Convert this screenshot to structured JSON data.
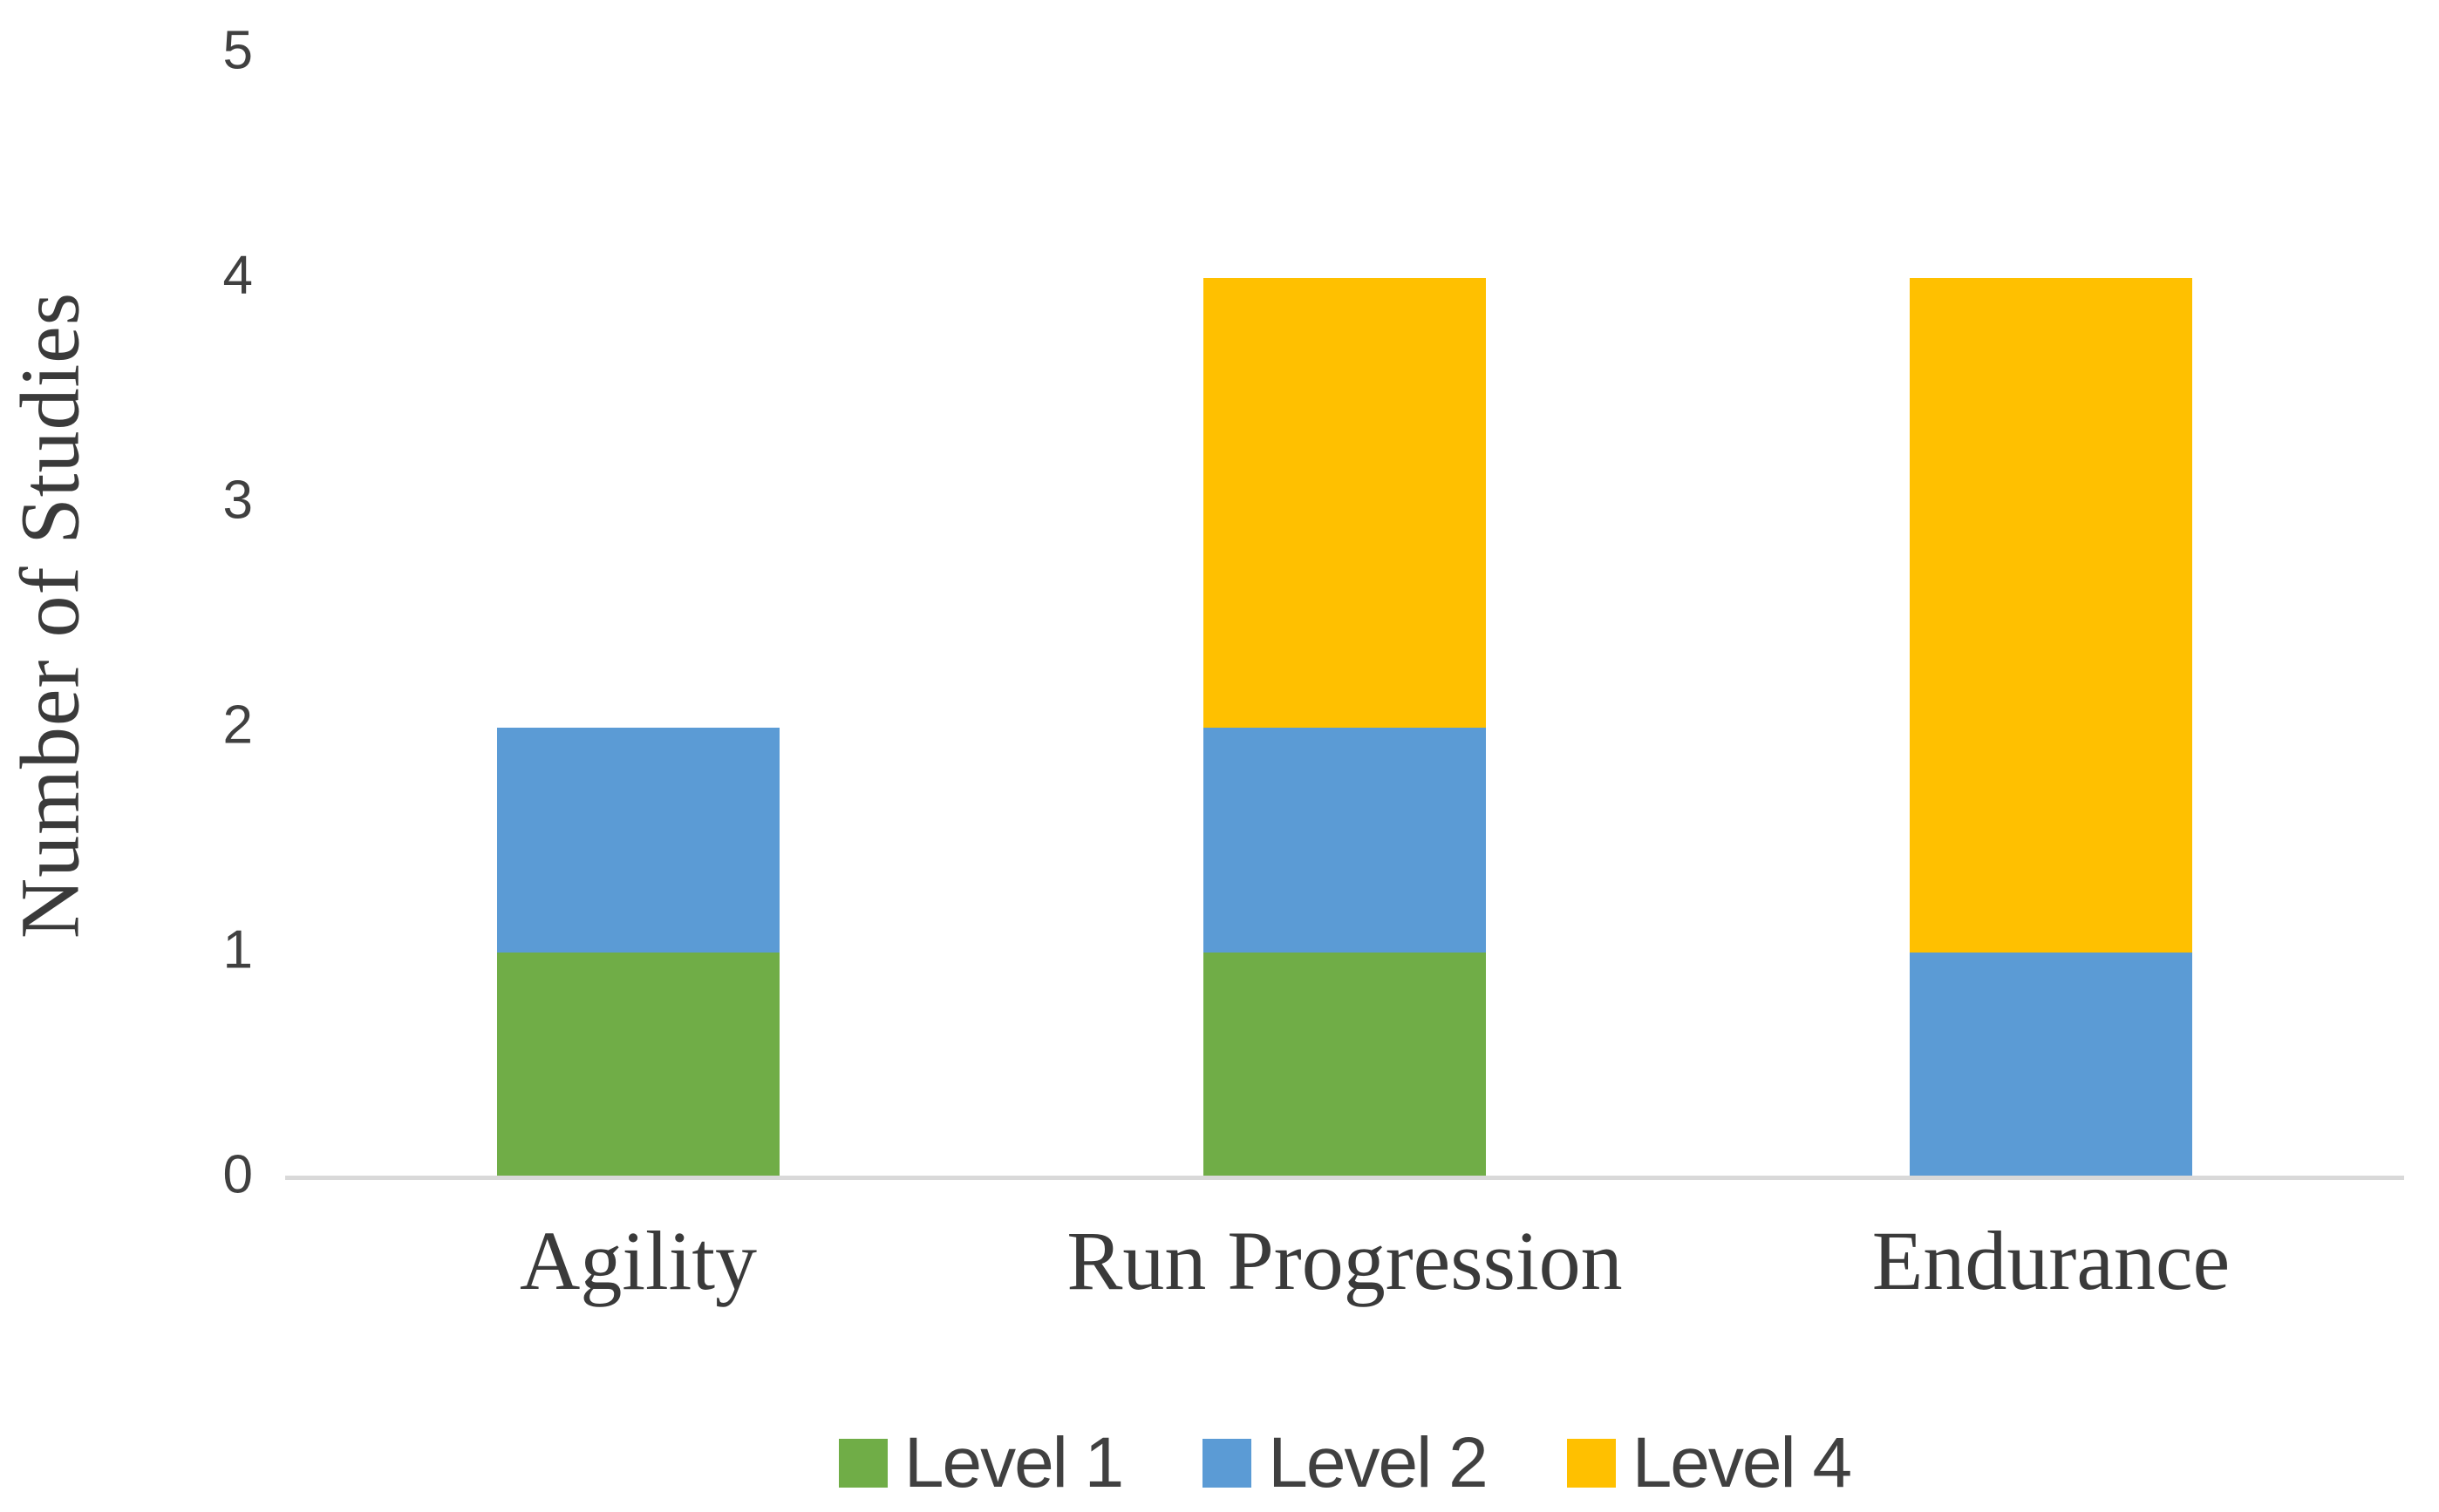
{
  "figure": {
    "background": "#FFFFFF",
    "text_color": "#404040",
    "axis_line_color": "#D9D9D9"
  },
  "chart_data": {
    "type": "bar",
    "stacked": true,
    "title": "",
    "xlabel": "",
    "ylabel": "Number of Studies",
    "categories": [
      "Agility",
      "Run Progression",
      "Endurance"
    ],
    "series": [
      {
        "name": "Level 1",
        "color": "#70AD47",
        "values": [
          1,
          1,
          0
        ]
      },
      {
        "name": "Level 2",
        "color": "#5B9BD5",
        "values": [
          1,
          1,
          1
        ]
      },
      {
        "name": "Level 4",
        "color": "#FFC000",
        "values": [
          0,
          2,
          3
        ]
      }
    ],
    "totals": [
      2,
      4,
      4
    ],
    "ylim": [
      0,
      5
    ],
    "yticks": [
      "0",
      "1",
      "2",
      "3",
      "4",
      "5"
    ],
    "grid": false,
    "legend": {
      "position": "bottom",
      "entries": [
        {
          "label": "Level 1",
          "color": "#70AD47"
        },
        {
          "label": "Level 2",
          "color": "#5B9BD5"
        },
        {
          "label": "Level 4",
          "color": "#FFC000"
        }
      ]
    }
  }
}
